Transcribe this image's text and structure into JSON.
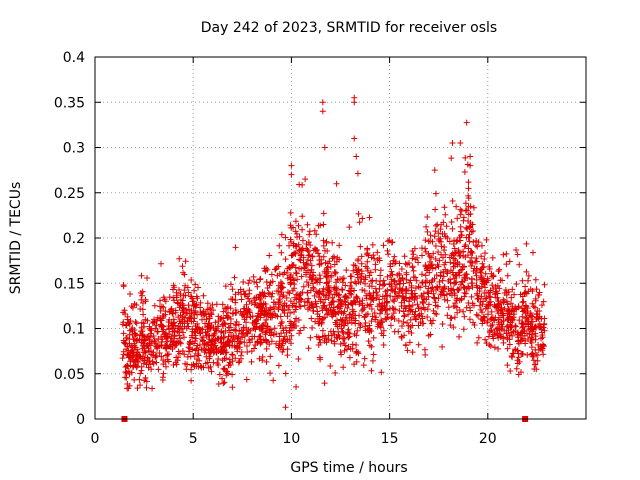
{
  "chart_data": {
    "type": "scatter",
    "title": "Day 242 of 2023, SRMTID for receiver osls",
    "xlabel": "GPS time / hours",
    "ylabel": "SRMTID / TECUs",
    "xlim": [
      0,
      25
    ],
    "ylim": [
      0,
      0.4
    ],
    "xticks": [
      "0",
      "5",
      "10",
      "15",
      "20"
    ],
    "yticks": [
      "0",
      "0.05",
      "0.1",
      "0.15",
      "0.2",
      "0.25",
      "0.3",
      "0.35",
      "0.4"
    ],
    "grid": true,
    "marker_color": "#e00000",
    "marker": "plus",
    "zero_markers_x": [
      1.5,
      21.9
    ],
    "data_range_x": [
      1.4,
      22.9
    ],
    "profile": [
      [
        1.5,
        0.09,
        0.03
      ],
      [
        2.0,
        0.08,
        0.03
      ],
      [
        2.5,
        0.085,
        0.035
      ],
      [
        3.0,
        0.075,
        0.03
      ],
      [
        3.5,
        0.09,
        0.03
      ],
      [
        4.0,
        0.1,
        0.03
      ],
      [
        4.5,
        0.11,
        0.035
      ],
      [
        5.0,
        0.1,
        0.035
      ],
      [
        5.5,
        0.095,
        0.03
      ],
      [
        6.0,
        0.09,
        0.03
      ],
      [
        6.5,
        0.085,
        0.03
      ],
      [
        7.0,
        0.09,
        0.03
      ],
      [
        7.5,
        0.1,
        0.03
      ],
      [
        8.0,
        0.11,
        0.035
      ],
      [
        8.5,
        0.11,
        0.03
      ],
      [
        9.0,
        0.12,
        0.035
      ],
      [
        9.5,
        0.13,
        0.045
      ],
      [
        10.0,
        0.15,
        0.05
      ],
      [
        10.5,
        0.16,
        0.05
      ],
      [
        11.0,
        0.15,
        0.045
      ],
      [
        11.5,
        0.14,
        0.05
      ],
      [
        12.0,
        0.13,
        0.04
      ],
      [
        12.5,
        0.12,
        0.035
      ],
      [
        13.0,
        0.12,
        0.04
      ],
      [
        13.5,
        0.14,
        0.05
      ],
      [
        14.0,
        0.13,
        0.04
      ],
      [
        14.5,
        0.13,
        0.035
      ],
      [
        15.0,
        0.14,
        0.035
      ],
      [
        15.5,
        0.14,
        0.035
      ],
      [
        16.0,
        0.13,
        0.035
      ],
      [
        16.5,
        0.14,
        0.035
      ],
      [
        17.0,
        0.15,
        0.04
      ],
      [
        17.5,
        0.16,
        0.04
      ],
      [
        18.0,
        0.17,
        0.045
      ],
      [
        18.5,
        0.17,
        0.045
      ],
      [
        19.0,
        0.18,
        0.05
      ],
      [
        19.5,
        0.15,
        0.04
      ],
      [
        20.0,
        0.12,
        0.03
      ],
      [
        20.5,
        0.12,
        0.03
      ],
      [
        21.0,
        0.11,
        0.03
      ],
      [
        21.5,
        0.1,
        0.03
      ],
      [
        22.0,
        0.11,
        0.035
      ],
      [
        22.5,
        0.1,
        0.03
      ]
    ],
    "peaks": [
      [
        11.6,
        0.35
      ],
      [
        11.6,
        0.34
      ],
      [
        11.7,
        0.3
      ],
      [
        13.2,
        0.355
      ],
      [
        13.2,
        0.35
      ],
      [
        13.2,
        0.31
      ],
      [
        13.3,
        0.29
      ],
      [
        10.0,
        0.28
      ],
      [
        10.0,
        0.27
      ],
      [
        18.6,
        0.305
      ],
      [
        18.2,
        0.305
      ],
      [
        19.1,
        0.29
      ],
      [
        19.1,
        0.28
      ],
      [
        9.7,
        0.013
      ],
      [
        17.3,
        0.275
      ],
      [
        10.7,
        0.265
      ],
      [
        12.3,
        0.26
      ]
    ]
  }
}
